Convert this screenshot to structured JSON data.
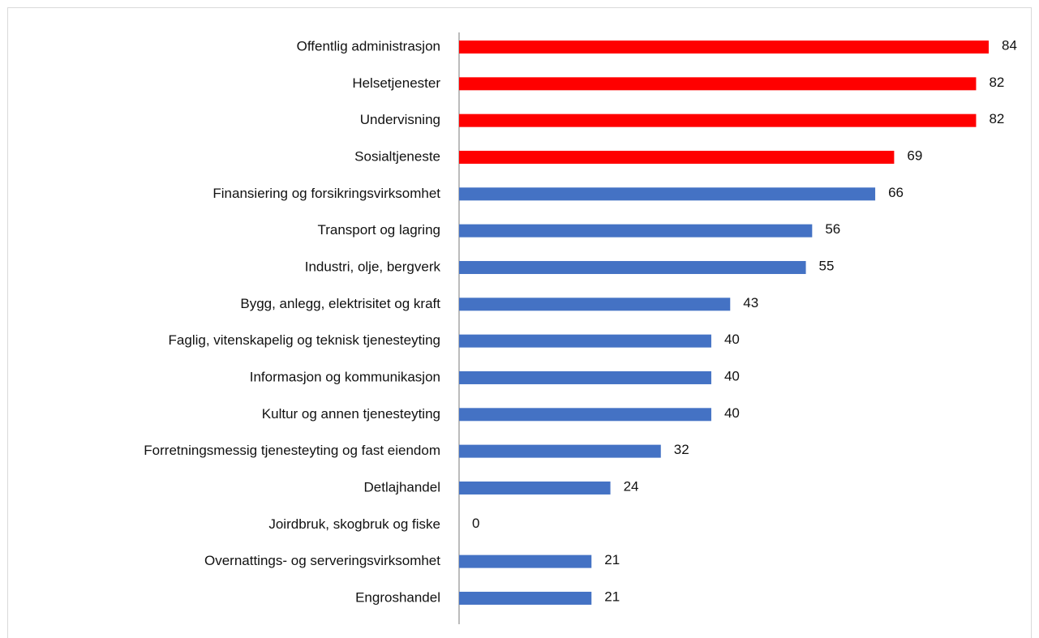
{
  "chart_data": {
    "type": "barh",
    "categories": [
      "Offentlig administrasjon",
      "Helsetjenester",
      "Undervisning",
      "Sosialtjeneste",
      "Finansiering og forsikringsvirksomhet",
      "Transport og lagring",
      "Industri, olje, bergverk",
      "Bygg, anlegg, elektrisitet og kraft",
      "Faglig, vitenskapelig og teknisk tjenesteyting",
      "Informasjon og kommunikasjon",
      "Kultur og annen tjenesteyting",
      "Forretningsmessig tjenesteyting og fast eiendom",
      "Detlajhandel",
      "Joirdbruk, skogbruk og fiske",
      "Overnattings- og serveringsvirksomhet",
      "Engroshandel"
    ],
    "values": [
      84,
      82,
      82,
      69,
      66,
      56,
      55,
      43,
      40,
      40,
      40,
      32,
      24,
      0,
      21,
      21
    ],
    "colors": [
      "#ff0000",
      "#ff0000",
      "#ff0000",
      "#ff0000",
      "#4472c4",
      "#4472c4",
      "#4472c4",
      "#4472c4",
      "#4472c4",
      "#4472c4",
      "#4472c4",
      "#4472c4",
      "#4472c4",
      "#4472c4",
      "#4472c4",
      "#4472c4"
    ]
  }
}
